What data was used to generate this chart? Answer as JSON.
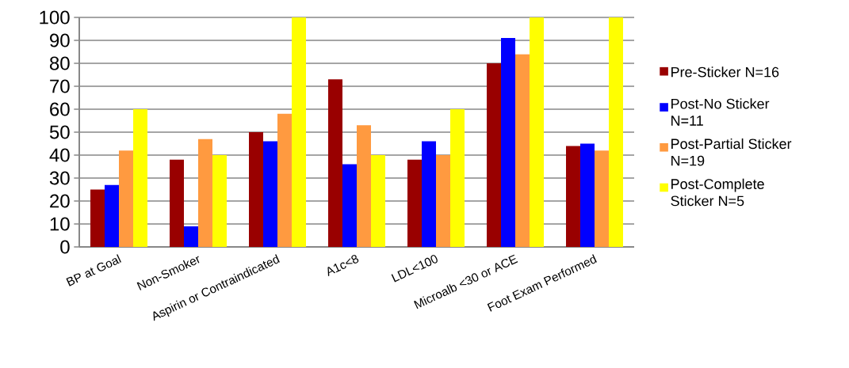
{
  "chart_data": {
    "type": "bar",
    "categories": [
      "BP at Goal",
      "Non-Smoker",
      "Aspirin or Contraindicated",
      "A1c<8",
      "LDL<100",
      "Microalb <30 or ACE",
      "Foot Exam Performed"
    ],
    "series": [
      {
        "name": "Pre-Sticker N=16",
        "color": "#990000",
        "values": [
          25,
          38,
          50,
          73,
          38,
          80,
          44
        ]
      },
      {
        "name": "Post-No Sticker N=11",
        "color": "#0000ff",
        "values": [
          27,
          9,
          46,
          36,
          46,
          91,
          45
        ]
      },
      {
        "name": "Post-Partial Sticker N=19",
        "color": "#ff9a40",
        "values": [
          42,
          47,
          58,
          53,
          40,
          84,
          42
        ]
      },
      {
        "name": "Post-Complete Sticker N=5",
        "color": "#ffff00",
        "values": [
          60,
          40,
          100,
          40,
          60,
          100,
          100
        ]
      }
    ],
    "ylim": [
      0,
      100
    ],
    "yticks": [
      0,
      10,
      20,
      30,
      40,
      50,
      60,
      70,
      80,
      90,
      100
    ],
    "grid": "y",
    "legend": "right"
  }
}
